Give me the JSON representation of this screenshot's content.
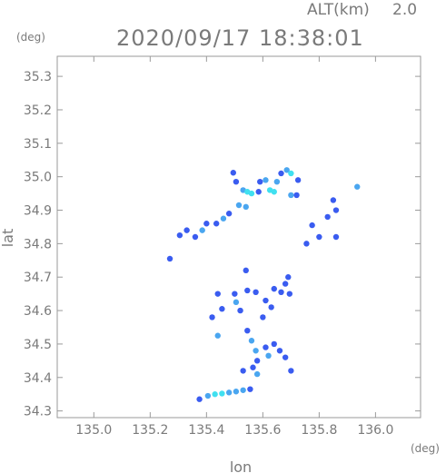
{
  "header": {
    "altitude_label": "ALT(km)",
    "altitude_value": "2.0",
    "timestamp": "2020/09/17 18:38:01"
  },
  "colors": {
    "axis": "#9a9a9a",
    "text": "#7a7a7a",
    "echo_weak": "#3a5cf0",
    "echo_medium": "#4aa6f0",
    "echo_strong": "#40e0f0"
  },
  "chart_data": {
    "type": "scatter",
    "title": "2020/09/17 18:38:01",
    "xlabel": "lon",
    "ylabel": "lat",
    "x_unit": "(deg)",
    "y_unit": "(deg)",
    "xlim": [
      134.87,
      136.16
    ],
    "ylim": [
      34.28,
      35.36
    ],
    "x_ticks": [
      "135.0",
      "135.2",
      "135.4",
      "135.6",
      "135.8",
      "136.0"
    ],
    "x_tick_values": [
      135.0,
      135.2,
      135.4,
      135.6,
      135.8,
      136.0
    ],
    "y_ticks": [
      "34.3",
      "34.4",
      "34.5",
      "34.6",
      "34.7",
      "34.8",
      "34.9",
      "35.0",
      "35.1",
      "35.2",
      "35.3"
    ],
    "y_tick_values": [
      34.3,
      34.4,
      34.5,
      34.6,
      34.7,
      34.8,
      34.9,
      35.0,
      35.1,
      35.2,
      35.3
    ],
    "grid": false,
    "echo_levels": [
      "weak",
      "medium",
      "strong"
    ],
    "points": [
      {
        "x": 135.495,
        "y": 35.012,
        "level": "weak"
      },
      {
        "x": 135.505,
        "y": 34.985,
        "level": "weak"
      },
      {
        "x": 135.53,
        "y": 34.96,
        "level": "medium"
      },
      {
        "x": 135.545,
        "y": 34.955,
        "level": "strong"
      },
      {
        "x": 135.56,
        "y": 34.95,
        "level": "strong"
      },
      {
        "x": 135.585,
        "y": 34.955,
        "level": "weak"
      },
      {
        "x": 135.59,
        "y": 34.985,
        "level": "weak"
      },
      {
        "x": 135.61,
        "y": 34.99,
        "level": "medium"
      },
      {
        "x": 135.625,
        "y": 34.96,
        "level": "strong"
      },
      {
        "x": 135.64,
        "y": 34.955,
        "level": "strong"
      },
      {
        "x": 135.65,
        "y": 34.985,
        "level": "medium"
      },
      {
        "x": 135.665,
        "y": 35.01,
        "level": "weak"
      },
      {
        "x": 135.685,
        "y": 35.02,
        "level": "medium"
      },
      {
        "x": 135.7,
        "y": 35.01,
        "level": "strong"
      },
      {
        "x": 135.7,
        "y": 34.945,
        "level": "medium"
      },
      {
        "x": 135.72,
        "y": 34.945,
        "level": "weak"
      },
      {
        "x": 135.725,
        "y": 34.99,
        "level": "weak"
      },
      {
        "x": 135.515,
        "y": 34.915,
        "level": "medium"
      },
      {
        "x": 135.54,
        "y": 34.91,
        "level": "medium"
      },
      {
        "x": 135.48,
        "y": 34.89,
        "level": "weak"
      },
      {
        "x": 135.46,
        "y": 34.875,
        "level": "medium"
      },
      {
        "x": 135.435,
        "y": 34.86,
        "level": "weak"
      },
      {
        "x": 135.4,
        "y": 34.86,
        "level": "weak"
      },
      {
        "x": 135.385,
        "y": 34.84,
        "level": "medium"
      },
      {
        "x": 135.33,
        "y": 34.84,
        "level": "weak"
      },
      {
        "x": 135.36,
        "y": 34.82,
        "level": "weak"
      },
      {
        "x": 135.305,
        "y": 34.825,
        "level": "weak"
      },
      {
        "x": 135.27,
        "y": 34.755,
        "level": "weak"
      },
      {
        "x": 135.935,
        "y": 34.97,
        "level": "medium"
      },
      {
        "x": 135.85,
        "y": 34.93,
        "level": "weak"
      },
      {
        "x": 135.86,
        "y": 34.9,
        "level": "weak"
      },
      {
        "x": 135.83,
        "y": 34.88,
        "level": "weak"
      },
      {
        "x": 135.8,
        "y": 34.82,
        "level": "weak"
      },
      {
        "x": 135.775,
        "y": 34.855,
        "level": "weak"
      },
      {
        "x": 135.755,
        "y": 34.8,
        "level": "weak"
      },
      {
        "x": 135.86,
        "y": 34.82,
        "level": "weak"
      },
      {
        "x": 135.5,
        "y": 34.65,
        "level": "weak"
      },
      {
        "x": 135.505,
        "y": 34.625,
        "level": "medium"
      },
      {
        "x": 135.52,
        "y": 34.6,
        "level": "weak"
      },
      {
        "x": 135.545,
        "y": 34.66,
        "level": "weak"
      },
      {
        "x": 135.575,
        "y": 34.655,
        "level": "weak"
      },
      {
        "x": 135.61,
        "y": 34.63,
        "level": "weak"
      },
      {
        "x": 135.63,
        "y": 34.61,
        "level": "weak"
      },
      {
        "x": 135.64,
        "y": 34.665,
        "level": "weak"
      },
      {
        "x": 135.665,
        "y": 34.655,
        "level": "weak"
      },
      {
        "x": 135.68,
        "y": 34.68,
        "level": "weak"
      },
      {
        "x": 135.695,
        "y": 34.65,
        "level": "weak"
      },
      {
        "x": 135.6,
        "y": 34.58,
        "level": "weak"
      },
      {
        "x": 135.545,
        "y": 34.54,
        "level": "weak"
      },
      {
        "x": 135.56,
        "y": 34.51,
        "level": "medium"
      },
      {
        "x": 135.575,
        "y": 34.48,
        "level": "medium"
      },
      {
        "x": 135.61,
        "y": 34.49,
        "level": "weak"
      },
      {
        "x": 135.62,
        "y": 34.465,
        "level": "medium"
      },
      {
        "x": 135.58,
        "y": 34.45,
        "level": "weak"
      },
      {
        "x": 135.565,
        "y": 34.43,
        "level": "weak"
      },
      {
        "x": 135.66,
        "y": 34.48,
        "level": "weak"
      },
      {
        "x": 135.68,
        "y": 34.46,
        "level": "weak"
      },
      {
        "x": 135.7,
        "y": 34.42,
        "level": "weak"
      },
      {
        "x": 135.64,
        "y": 34.5,
        "level": "weak"
      },
      {
        "x": 135.53,
        "y": 34.42,
        "level": "weak"
      },
      {
        "x": 135.58,
        "y": 34.41,
        "level": "medium"
      },
      {
        "x": 135.455,
        "y": 34.605,
        "level": "weak"
      },
      {
        "x": 135.42,
        "y": 34.58,
        "level": "weak"
      },
      {
        "x": 135.44,
        "y": 34.525,
        "level": "medium"
      },
      {
        "x": 135.44,
        "y": 34.65,
        "level": "weak"
      },
      {
        "x": 135.54,
        "y": 34.72,
        "level": "weak"
      },
      {
        "x": 135.69,
        "y": 34.7,
        "level": "weak"
      },
      {
        "x": 135.375,
        "y": 34.335,
        "level": "weak"
      },
      {
        "x": 135.405,
        "y": 34.345,
        "level": "medium"
      },
      {
        "x": 135.43,
        "y": 34.35,
        "level": "strong"
      },
      {
        "x": 135.455,
        "y": 34.352,
        "level": "strong"
      },
      {
        "x": 135.48,
        "y": 34.355,
        "level": "medium"
      },
      {
        "x": 135.505,
        "y": 34.358,
        "level": "medium"
      },
      {
        "x": 135.53,
        "y": 34.362,
        "level": "medium"
      },
      {
        "x": 135.555,
        "y": 34.365,
        "level": "weak"
      }
    ]
  }
}
